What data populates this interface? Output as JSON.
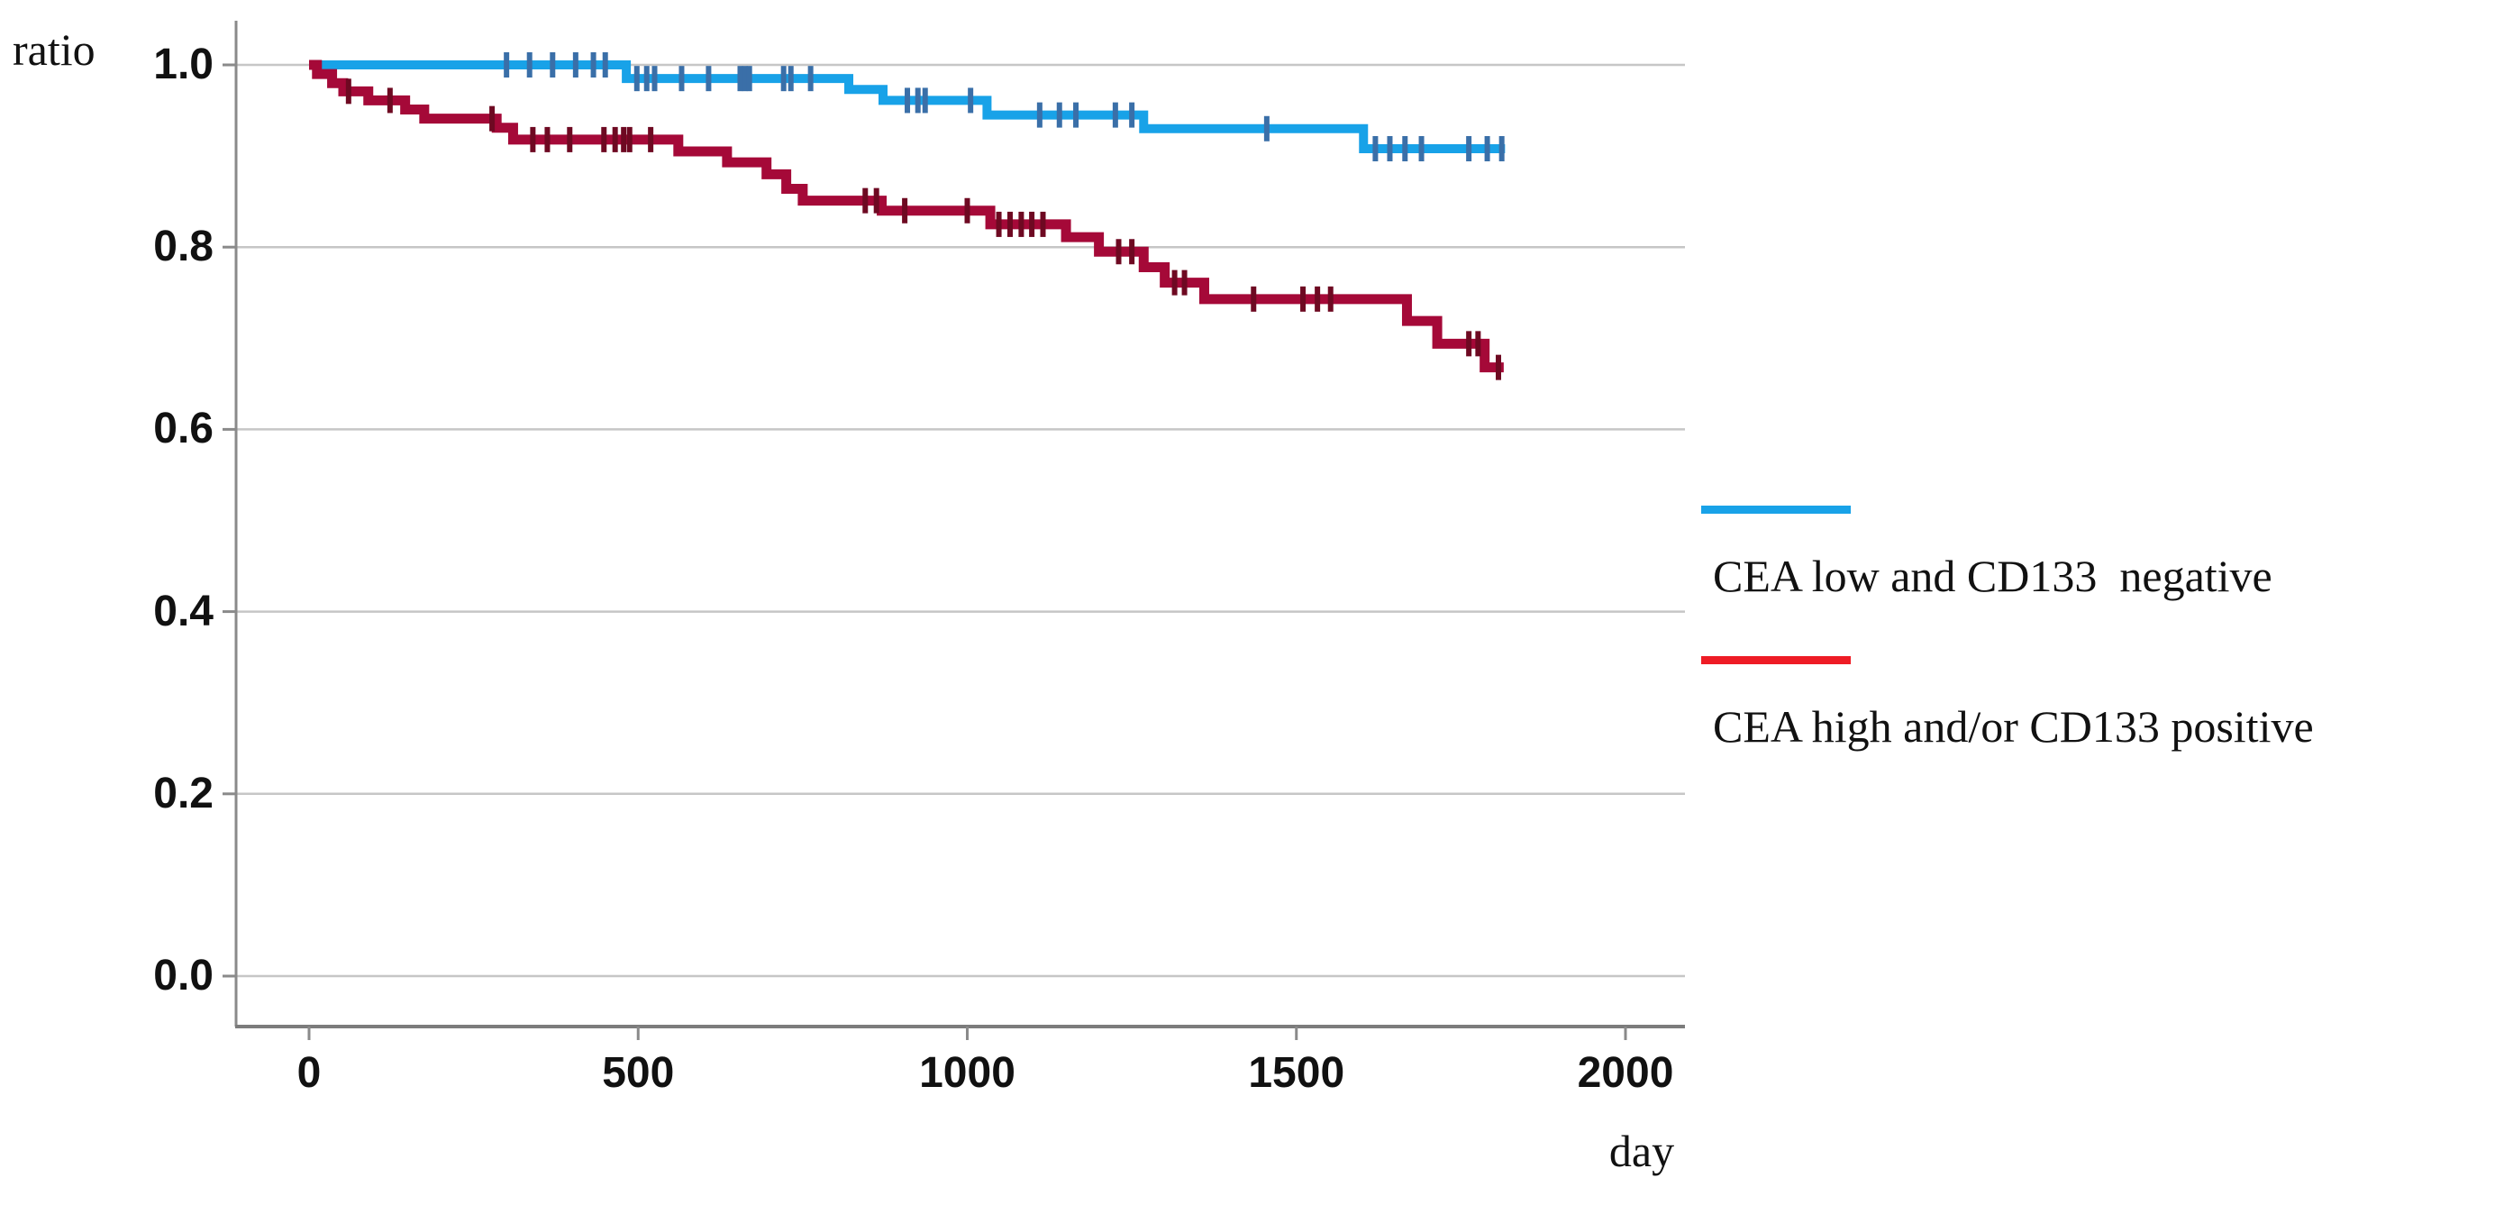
{
  "figure": {
    "y_axis_title": "ratio",
    "x_axis_title": "day"
  },
  "legend": {
    "position": "right",
    "items": [
      {
        "label": "CEA low and CD133  negative",
        "color": "#18A2E8"
      },
      {
        "label": "CEA high and/or CD133 positive",
        "color": "#EE1C25"
      }
    ]
  },
  "chart_data": {
    "type": "line",
    "subtype": "kaplan-meier-step",
    "title": "",
    "xlabel": "day",
    "ylabel": "ratio",
    "xlim": [
      0,
      2000
    ],
    "ylim": [
      0.0,
      1.0
    ],
    "grid": "horizontal-only",
    "grid_color": "#C6C6C6",
    "axis_color": "#8A8A8A",
    "x_ticks": [
      {
        "label": "0",
        "value": 0
      },
      {
        "label": "500",
        "value": 500
      },
      {
        "label": "1000",
        "value": 1000
      },
      {
        "label": "1500",
        "value": 1500
      },
      {
        "label": "2000",
        "value": 2000
      }
    ],
    "y_ticks": [
      {
        "label": "0.0",
        "value": 0.0
      },
      {
        "label": "0.2",
        "value": 0.2
      },
      {
        "label": "0.4",
        "value": 0.4
      },
      {
        "label": "0.6",
        "value": 0.6
      },
      {
        "label": "0.8",
        "value": 0.8
      },
      {
        "label": "1.0",
        "value": 1.0
      }
    ],
    "series": [
      {
        "name": "CEA low and CD133  negative",
        "line_color": "#18A2E8",
        "censor_color": "#3A6FA8",
        "line_width": 10,
        "steps": [
          [
            0,
            1.0
          ],
          [
            482,
            0.985
          ],
          [
            820,
            0.973
          ],
          [
            872,
            0.961
          ],
          [
            1030,
            0.945
          ],
          [
            1268,
            0.93
          ],
          [
            1602,
            0.908
          ]
        ],
        "end_day": 1817,
        "censors": [
          [
            300,
            1.0
          ],
          [
            335,
            1.0
          ],
          [
            370,
            1.0
          ],
          [
            405,
            1.0
          ],
          [
            432,
            1.0
          ],
          [
            450,
            1.0
          ],
          [
            498,
            0.985
          ],
          [
            513,
            0.985
          ],
          [
            525,
            0.985
          ],
          [
            566,
            0.985
          ],
          [
            607,
            0.985
          ],
          [
            655,
            0.985
          ],
          [
            662,
            0.985
          ],
          [
            669,
            0.985
          ],
          [
            721,
            0.985
          ],
          [
            732,
            0.985
          ],
          [
            762,
            0.985
          ],
          [
            909,
            0.961
          ],
          [
            925,
            0.961
          ],
          [
            936,
            0.961
          ],
          [
            1005,
            0.961
          ],
          [
            1110,
            0.945
          ],
          [
            1140,
            0.945
          ],
          [
            1165,
            0.945
          ],
          [
            1225,
            0.945
          ],
          [
            1250,
            0.945
          ],
          [
            1455,
            0.93
          ],
          [
            1620,
            0.908
          ],
          [
            1642,
            0.908
          ],
          [
            1665,
            0.908
          ],
          [
            1690,
            0.908
          ],
          [
            1762,
            0.908
          ],
          [
            1790,
            0.908
          ],
          [
            1812,
            0.908
          ]
        ]
      },
      {
        "name": "CEA high and/or CD133 positive",
        "line_color": "#A50938",
        "censor_color": "#6E0922",
        "line_width": 11,
        "steps": [
          [
            0,
            1.0
          ],
          [
            12,
            0.99
          ],
          [
            35,
            0.98
          ],
          [
            52,
            0.971
          ],
          [
            90,
            0.961
          ],
          [
            146,
            0.951
          ],
          [
            175,
            0.941
          ],
          [
            285,
            0.931
          ],
          [
            310,
            0.918
          ],
          [
            561,
            0.905
          ],
          [
            635,
            0.893
          ],
          [
            695,
            0.88
          ],
          [
            725,
            0.864
          ],
          [
            750,
            0.851
          ],
          [
            870,
            0.84
          ],
          [
            1035,
            0.825
          ],
          [
            1150,
            0.811
          ],
          [
            1200,
            0.795
          ],
          [
            1268,
            0.778
          ],
          [
            1300,
            0.761
          ],
          [
            1360,
            0.743
          ],
          [
            1668,
            0.719
          ],
          [
            1714,
            0.694
          ],
          [
            1786,
            0.668
          ]
        ],
        "end_day": 1815,
        "censors": [
          [
            60,
            0.971
          ],
          [
            123,
            0.961
          ],
          [
            278,
            0.941
          ],
          [
            340,
            0.918
          ],
          [
            362,
            0.918
          ],
          [
            396,
            0.918
          ],
          [
            448,
            0.918
          ],
          [
            465,
            0.918
          ],
          [
            478,
            0.918
          ],
          [
            487,
            0.918
          ],
          [
            519,
            0.918
          ],
          [
            845,
            0.851
          ],
          [
            862,
            0.851
          ],
          [
            905,
            0.84
          ],
          [
            1000,
            0.84
          ],
          [
            1048,
            0.825
          ],
          [
            1065,
            0.825
          ],
          [
            1082,
            0.825
          ],
          [
            1098,
            0.825
          ],
          [
            1115,
            0.825
          ],
          [
            1230,
            0.795
          ],
          [
            1250,
            0.795
          ],
          [
            1315,
            0.761
          ],
          [
            1330,
            0.761
          ],
          [
            1435,
            0.743
          ],
          [
            1510,
            0.743
          ],
          [
            1532,
            0.743
          ],
          [
            1552,
            0.743
          ],
          [
            1762,
            0.694
          ],
          [
            1776,
            0.694
          ],
          [
            1807,
            0.668
          ]
        ]
      }
    ]
  }
}
